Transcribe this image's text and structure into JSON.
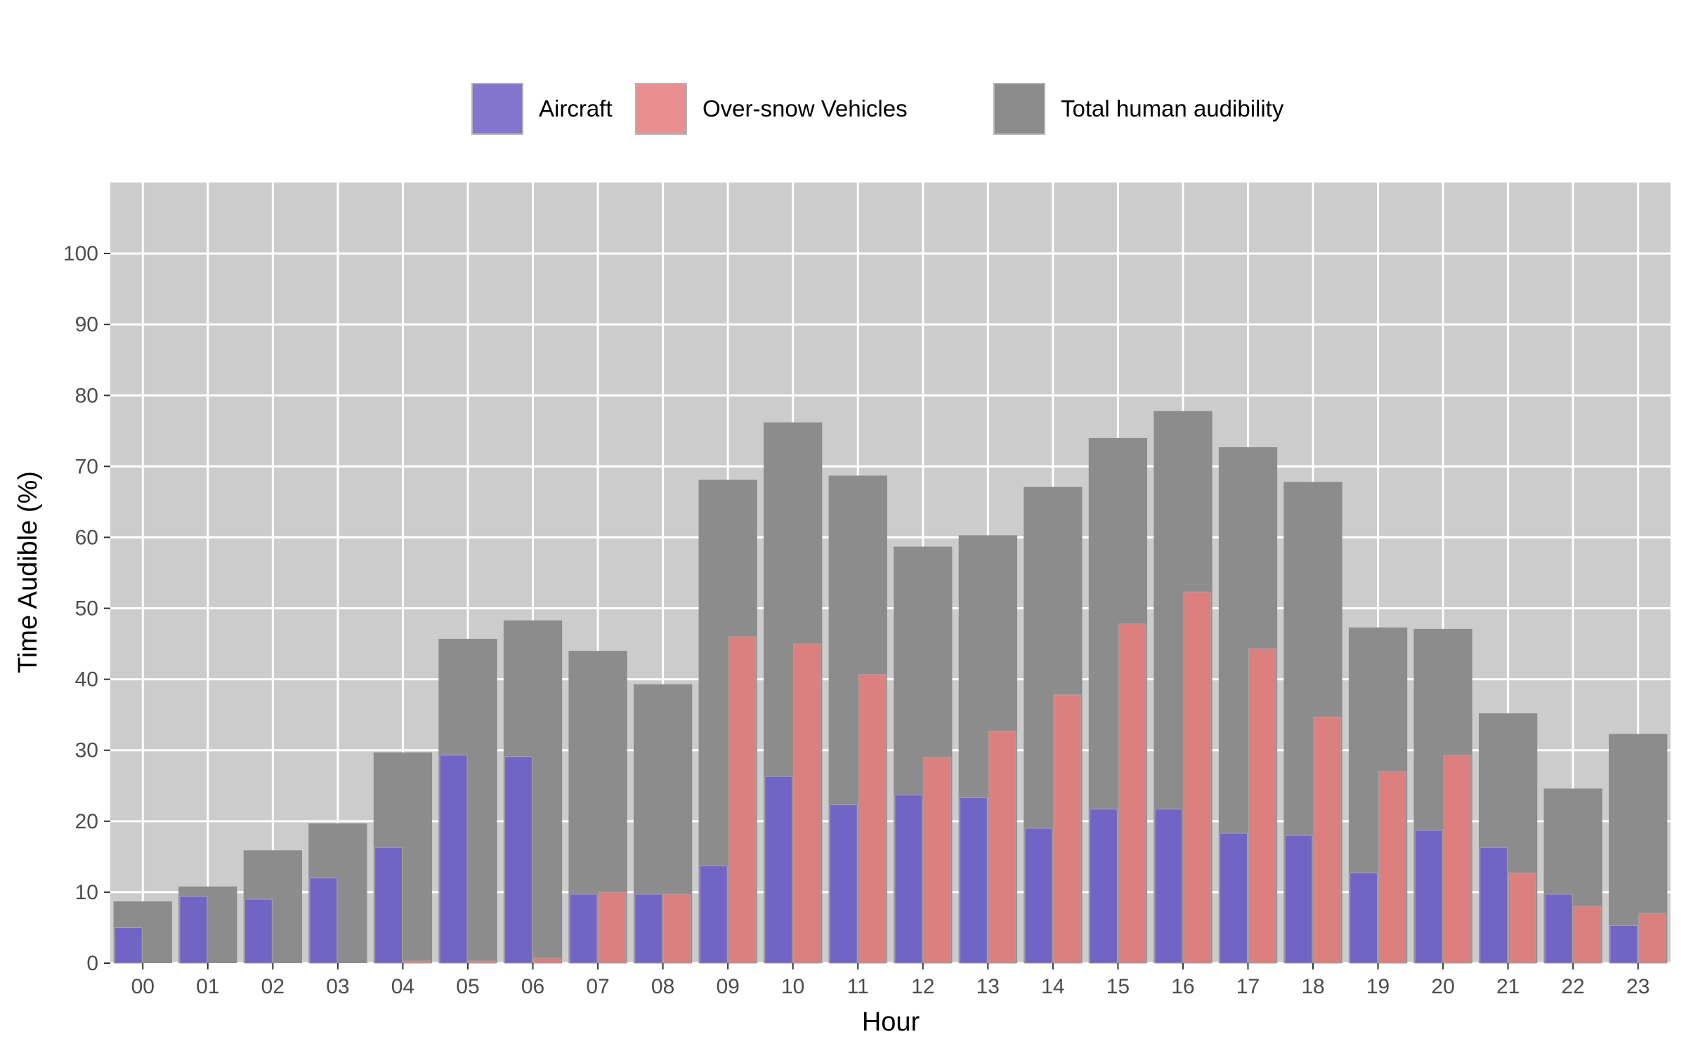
{
  "chart_data": {
    "type": "bar",
    "title": "",
    "xlabel": "Hour",
    "ylabel": "Time Audible (%)",
    "ylim": [
      0,
      110
    ],
    "yticks": [
      0,
      10,
      20,
      30,
      40,
      50,
      60,
      70,
      80,
      90,
      100
    ],
    "grid": true,
    "legend_position": "top",
    "categories": [
      "00",
      "01",
      "02",
      "03",
      "04",
      "05",
      "06",
      "07",
      "08",
      "09",
      "10",
      "11",
      "12",
      "13",
      "14",
      "15",
      "16",
      "17",
      "18",
      "19",
      "20",
      "21",
      "22",
      "23"
    ],
    "series": [
      {
        "name": "Total human audibility",
        "color": "#8c8c8c",
        "values": [
          8.7,
          10.8,
          15.9,
          19.7,
          29.7,
          45.7,
          48.3,
          44.0,
          39.3,
          68.1,
          76.2,
          68.7,
          58.7,
          60.3,
          67.1,
          74.0,
          77.8,
          72.7,
          67.8,
          47.3,
          47.1,
          35.2,
          24.6,
          32.3
        ]
      },
      {
        "name": "Aircraft",
        "color": "#7264c4",
        "values": [
          5.0,
          9.4,
          9.0,
          12.0,
          16.3,
          29.3,
          29.1,
          9.7,
          9.7,
          13.7,
          26.3,
          22.3,
          23.7,
          23.3,
          19.0,
          21.7,
          21.7,
          18.3,
          18.0,
          12.7,
          18.7,
          16.3,
          9.7,
          5.3
        ]
      },
      {
        "name": "Over-snow Vehicles",
        "color": "#dc7f7f",
        "values": [
          0,
          0,
          0,
          0,
          0.3,
          0.3,
          0.7,
          10.0,
          9.7,
          46.0,
          45.0,
          40.7,
          29.0,
          32.7,
          37.8,
          47.8,
          52.3,
          44.3,
          34.7,
          27.0,
          29.3,
          12.7,
          8.0,
          7.0
        ]
      }
    ],
    "legend": [
      {
        "label": "Aircraft",
        "color": "#8375cf"
      },
      {
        "label": "Over-snow Vehicles",
        "color": "#ea8f8f"
      },
      {
        "label": "Total human audibility",
        "color": "#8c8c8c"
      }
    ]
  },
  "style": {
    "panel_background": "#cccccc",
    "grid_color": "#ffffff",
    "bar_outline": "#a6a6a6"
  }
}
